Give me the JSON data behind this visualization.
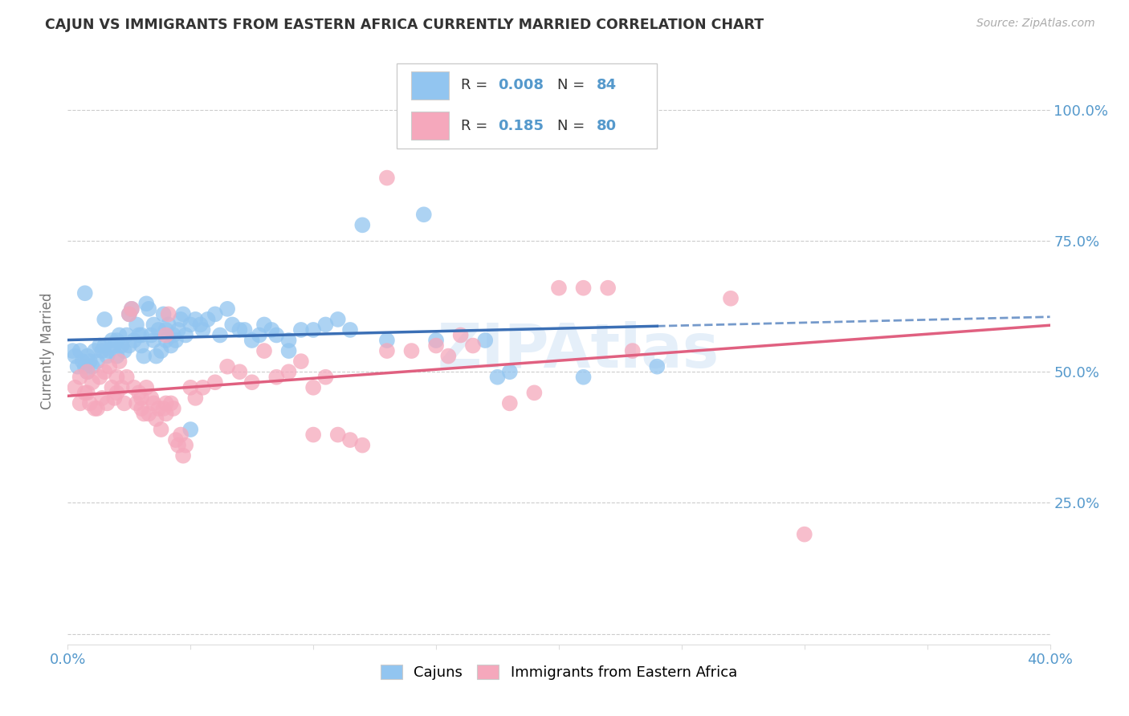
{
  "title": "CAJUN VS IMMIGRANTS FROM EASTERN AFRICA CURRENTLY MARRIED CORRELATION CHART",
  "source": "Source: ZipAtlas.com",
  "ylabel": "Currently Married",
  "xlim": [
    0.0,
    0.4
  ],
  "ylim": [
    -0.02,
    1.1
  ],
  "cajun_color": "#92C5F0",
  "eastern_africa_color": "#F5A8BC",
  "cajun_line_color": "#3B6FB5",
  "eastern_africa_line_color": "#E06080",
  "background_color": "#FFFFFF",
  "grid_color": "#CCCCCC",
  "tick_label_color": "#5599CC",
  "watermark": "ZIPAtlas",
  "cajun_scatter": [
    [
      0.003,
      0.53
    ],
    [
      0.005,
      0.54
    ],
    [
      0.006,
      0.52
    ],
    [
      0.007,
      0.51
    ],
    [
      0.008,
      0.53
    ],
    [
      0.009,
      0.52
    ],
    [
      0.01,
      0.51
    ],
    [
      0.011,
      0.54
    ],
    [
      0.012,
      0.52
    ],
    [
      0.013,
      0.55
    ],
    [
      0.014,
      0.54
    ],
    [
      0.015,
      0.55
    ],
    [
      0.015,
      0.6
    ],
    [
      0.016,
      0.53
    ],
    [
      0.017,
      0.54
    ],
    [
      0.018,
      0.56
    ],
    [
      0.019,
      0.55
    ],
    [
      0.02,
      0.53
    ],
    [
      0.02,
      0.56
    ],
    [
      0.021,
      0.57
    ],
    [
      0.022,
      0.55
    ],
    [
      0.023,
      0.54
    ],
    [
      0.024,
      0.57
    ],
    [
      0.025,
      0.55
    ],
    [
      0.025,
      0.61
    ],
    [
      0.026,
      0.62
    ],
    [
      0.027,
      0.56
    ],
    [
      0.028,
      0.59
    ],
    [
      0.029,
      0.57
    ],
    [
      0.03,
      0.55
    ],
    [
      0.03,
      0.57
    ],
    [
      0.031,
      0.53
    ],
    [
      0.032,
      0.63
    ],
    [
      0.033,
      0.62
    ],
    [
      0.034,
      0.57
    ],
    [
      0.035,
      0.59
    ],
    [
      0.035,
      0.56
    ],
    [
      0.036,
      0.53
    ],
    [
      0.037,
      0.58
    ],
    [
      0.038,
      0.54
    ],
    [
      0.039,
      0.61
    ],
    [
      0.04,
      0.56
    ],
    [
      0.04,
      0.58
    ],
    [
      0.041,
      0.59
    ],
    [
      0.042,
      0.55
    ],
    [
      0.043,
      0.57
    ],
    [
      0.044,
      0.56
    ],
    [
      0.045,
      0.58
    ],
    [
      0.046,
      0.6
    ],
    [
      0.047,
      0.61
    ],
    [
      0.048,
      0.57
    ],
    [
      0.05,
      0.59
    ],
    [
      0.052,
      0.6
    ],
    [
      0.054,
      0.59
    ],
    [
      0.055,
      0.58
    ],
    [
      0.057,
      0.6
    ],
    [
      0.06,
      0.61
    ],
    [
      0.062,
      0.57
    ],
    [
      0.065,
      0.62
    ],
    [
      0.067,
      0.59
    ],
    [
      0.07,
      0.58
    ],
    [
      0.072,
      0.58
    ],
    [
      0.075,
      0.56
    ],
    [
      0.078,
      0.57
    ],
    [
      0.08,
      0.59
    ],
    [
      0.083,
      0.58
    ],
    [
      0.085,
      0.57
    ],
    [
      0.09,
      0.56
    ],
    [
      0.095,
      0.58
    ],
    [
      0.1,
      0.58
    ],
    [
      0.105,
      0.59
    ],
    [
      0.11,
      0.6
    ],
    [
      0.115,
      0.58
    ],
    [
      0.007,
      0.65
    ],
    [
      0.12,
      0.78
    ],
    [
      0.145,
      0.8
    ],
    [
      0.15,
      0.56
    ],
    [
      0.17,
      0.56
    ],
    [
      0.175,
      0.49
    ],
    [
      0.18,
      0.5
    ],
    [
      0.21,
      0.49
    ],
    [
      0.24,
      0.51
    ],
    [
      0.05,
      0.39
    ],
    [
      0.09,
      0.54
    ],
    [
      0.13,
      0.56
    ],
    [
      0.002,
      0.54
    ],
    [
      0.004,
      0.51
    ],
    [
      0.008,
      0.5
    ]
  ],
  "eastern_africa_scatter": [
    [
      0.003,
      0.47
    ],
    [
      0.005,
      0.49
    ],
    [
      0.007,
      0.46
    ],
    [
      0.008,
      0.5
    ],
    [
      0.009,
      0.44
    ],
    [
      0.01,
      0.48
    ],
    [
      0.011,
      0.43
    ],
    [
      0.012,
      0.43
    ],
    [
      0.013,
      0.49
    ],
    [
      0.014,
      0.45
    ],
    [
      0.015,
      0.5
    ],
    [
      0.016,
      0.44
    ],
    [
      0.017,
      0.51
    ],
    [
      0.018,
      0.47
    ],
    [
      0.019,
      0.45
    ],
    [
      0.02,
      0.46
    ],
    [
      0.02,
      0.49
    ],
    [
      0.021,
      0.52
    ],
    [
      0.022,
      0.47
    ],
    [
      0.023,
      0.44
    ],
    [
      0.024,
      0.49
    ],
    [
      0.025,
      0.61
    ],
    [
      0.026,
      0.62
    ],
    [
      0.027,
      0.47
    ],
    [
      0.028,
      0.44
    ],
    [
      0.029,
      0.46
    ],
    [
      0.03,
      0.43
    ],
    [
      0.03,
      0.45
    ],
    [
      0.031,
      0.42
    ],
    [
      0.032,
      0.47
    ],
    [
      0.033,
      0.42
    ],
    [
      0.034,
      0.45
    ],
    [
      0.035,
      0.44
    ],
    [
      0.036,
      0.41
    ],
    [
      0.037,
      0.43
    ],
    [
      0.038,
      0.39
    ],
    [
      0.039,
      0.43
    ],
    [
      0.04,
      0.42
    ],
    [
      0.04,
      0.44
    ],
    [
      0.041,
      0.61
    ],
    [
      0.042,
      0.44
    ],
    [
      0.043,
      0.43
    ],
    [
      0.044,
      0.37
    ],
    [
      0.045,
      0.36
    ],
    [
      0.046,
      0.38
    ],
    [
      0.047,
      0.34
    ],
    [
      0.048,
      0.36
    ],
    [
      0.05,
      0.47
    ],
    [
      0.052,
      0.45
    ],
    [
      0.055,
      0.47
    ],
    [
      0.06,
      0.48
    ],
    [
      0.065,
      0.51
    ],
    [
      0.07,
      0.5
    ],
    [
      0.075,
      0.48
    ],
    [
      0.08,
      0.54
    ],
    [
      0.085,
      0.49
    ],
    [
      0.09,
      0.5
    ],
    [
      0.095,
      0.52
    ],
    [
      0.1,
      0.47
    ],
    [
      0.105,
      0.49
    ],
    [
      0.11,
      0.38
    ],
    [
      0.115,
      0.37
    ],
    [
      0.12,
      0.36
    ],
    [
      0.13,
      0.54
    ],
    [
      0.14,
      0.54
    ],
    [
      0.15,
      0.55
    ],
    [
      0.155,
      0.53
    ],
    [
      0.16,
      0.57
    ],
    [
      0.165,
      0.55
    ],
    [
      0.18,
      0.44
    ],
    [
      0.19,
      0.46
    ],
    [
      0.2,
      0.66
    ],
    [
      0.21,
      0.66
    ],
    [
      0.22,
      0.66
    ],
    [
      0.23,
      0.54
    ],
    [
      0.27,
      0.64
    ],
    [
      0.3,
      0.19
    ],
    [
      0.13,
      0.87
    ],
    [
      0.04,
      0.57
    ],
    [
      0.1,
      0.38
    ],
    [
      0.005,
      0.44
    ],
    [
      0.008,
      0.46
    ]
  ]
}
